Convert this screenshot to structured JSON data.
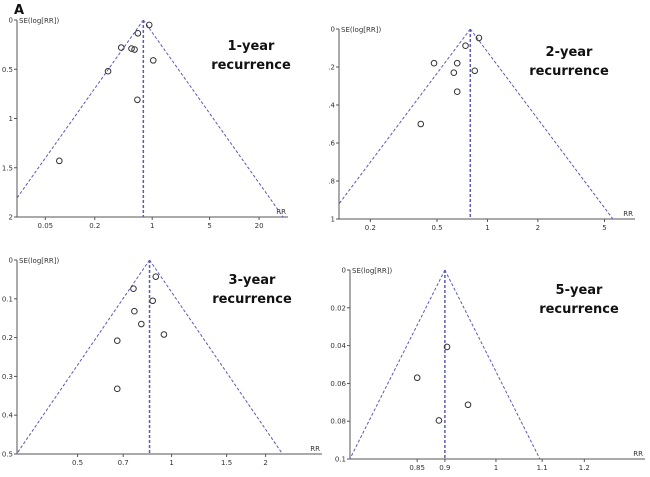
{
  "figure_label": "A",
  "chart_data": [
    {
      "type": "scatter",
      "title": [
        "1-year",
        "recurrence"
      ],
      "xlabel": "RR",
      "ylabel": "SE(log[RR])",
      "xscale": "log",
      "xlim": [
        0.0226,
        45
      ],
      "ylim": [
        0,
        2
      ],
      "xticks": [
        {
          "v": 0.05,
          "label": "0.05"
        },
        {
          "v": 0.2,
          "label": "0.2"
        },
        {
          "v": 1,
          "label": "1"
        },
        {
          "v": 5,
          "label": "5"
        },
        {
          "v": 20,
          "label": "20"
        }
      ],
      "yticks": [
        {
          "v": 0,
          "label": "0"
        },
        {
          "v": 0.5,
          "label": "0.5"
        },
        {
          "v": 1,
          "label": "1"
        },
        {
          "v": 1.5,
          "label": "1.5"
        },
        {
          "v": 2,
          "label": "2"
        }
      ],
      "pooled_rr": 0.78,
      "points": [
        {
          "rr": 0.92,
          "se": 0.05
        },
        {
          "rr": 0.67,
          "se": 0.135
        },
        {
          "rr": 0.42,
          "se": 0.28
        },
        {
          "rr": 0.56,
          "se": 0.29
        },
        {
          "rr": 0.61,
          "se": 0.3
        },
        {
          "rr": 1.03,
          "se": 0.41
        },
        {
          "rr": 0.29,
          "se": 0.52
        },
        {
          "rr": 0.66,
          "se": 0.81
        },
        {
          "rr": 0.074,
          "se": 1.43
        }
      ]
    },
    {
      "type": "scatter",
      "title": [
        "2-year",
        "recurrence"
      ],
      "xlabel": "RR",
      "ylabel": "SE(log[RR])",
      "xscale": "log",
      "xlim": [
        0.13,
        7.6
      ],
      "ylim": [
        0,
        1
      ],
      "xticks": [
        {
          "v": 0.2,
          "label": "0.2"
        },
        {
          "v": 0.5,
          "label": "0.5"
        },
        {
          "v": 1,
          "label": "1"
        },
        {
          "v": 2,
          "label": "2"
        },
        {
          "v": 5,
          "label": "5"
        }
      ],
      "yticks": [
        {
          "v": 0,
          "label": "0"
        },
        {
          "v": 0.2,
          "label": ".2"
        },
        {
          "v": 0.4,
          "label": ".4"
        },
        {
          "v": 0.6,
          "label": ".6"
        },
        {
          "v": 0.8,
          "label": ".8"
        },
        {
          "v": 1,
          "label": "1"
        }
      ],
      "pooled_rr": 0.79,
      "points": [
        {
          "rr": 0.89,
          "se": 0.047
        },
        {
          "rr": 0.74,
          "se": 0.088
        },
        {
          "rr": 0.48,
          "se": 0.18
        },
        {
          "rr": 0.66,
          "se": 0.18
        },
        {
          "rr": 0.63,
          "se": 0.23
        },
        {
          "rr": 0.84,
          "se": 0.22
        },
        {
          "rr": 0.66,
          "se": 0.33
        },
        {
          "rr": 0.4,
          "se": 0.5
        }
      ]
    },
    {
      "type": "scatter",
      "title": [
        "3-year",
        "recurrence"
      ],
      "xlabel": "RR",
      "ylabel": "SE(log[RR])",
      "xscale": "log",
      "xlim": [
        0.32,
        3.03
      ],
      "ylim": [
        0,
        0.5
      ],
      "xticks": [
        {
          "v": 0.5,
          "label": "0.5"
        },
        {
          "v": 0.7,
          "label": "0.7"
        },
        {
          "v": 1,
          "label": "1"
        },
        {
          "v": 1.5,
          "label": "1.5"
        },
        {
          "v": 2,
          "label": "2"
        }
      ],
      "yticks": [
        {
          "v": 0,
          "label": "0"
        },
        {
          "v": 0.1,
          "label": "0.1"
        },
        {
          "v": 0.2,
          "label": "0.2"
        },
        {
          "v": 0.3,
          "label": "0.3"
        },
        {
          "v": 0.4,
          "label": "0.4"
        },
        {
          "v": 0.5,
          "label": "0.5"
        }
      ],
      "pooled_rr": 0.85,
      "points": [
        {
          "rr": 0.89,
          "se": 0.043
        },
        {
          "rr": 0.755,
          "se": 0.074
        },
        {
          "rr": 0.87,
          "se": 0.105
        },
        {
          "rr": 0.76,
          "se": 0.132
        },
        {
          "rr": 0.8,
          "se": 0.165
        },
        {
          "rr": 0.945,
          "se": 0.192
        },
        {
          "rr": 0.67,
          "se": 0.208
        },
        {
          "rr": 0.67,
          "se": 0.332
        }
      ]
    },
    {
      "type": "scatter",
      "title": [
        "5-year",
        "recurrence"
      ],
      "xlabel": "RR",
      "ylabel": "SE(log[RR])",
      "xscale": "log",
      "xlim": [
        0.74,
        1.36
      ],
      "ylim": [
        0,
        0.1
      ],
      "xticks": [
        {
          "v": 0.85,
          "label": "0.85"
        },
        {
          "v": 0.9,
          "label": "0.9"
        },
        {
          "v": 1,
          "label": "1"
        },
        {
          "v": 1.1,
          "label": "1.1"
        },
        {
          "v": 1.2,
          "label": "1.2"
        }
      ],
      "yticks": [
        {
          "v": 0,
          "label": "0"
        },
        {
          "v": 0.02,
          "label": "0.02"
        },
        {
          "v": 0.04,
          "label": "0.04"
        },
        {
          "v": 0.06,
          "label": "0.06"
        },
        {
          "v": 0.08,
          "label": "0.08"
        },
        {
          "v": 0.1,
          "label": "0.1"
        }
      ],
      "pooled_rr": 0.9,
      "points": [
        {
          "rr": 0.904,
          "se": 0.0407
        },
        {
          "rr": 0.85,
          "se": 0.057
        },
        {
          "rr": 0.944,
          "se": 0.0713
        },
        {
          "rr": 0.889,
          "se": 0.0796
        }
      ]
    }
  ],
  "colors": {
    "funnel": "#5a5ab8",
    "axis": "#555555",
    "point": "#333333"
  }
}
